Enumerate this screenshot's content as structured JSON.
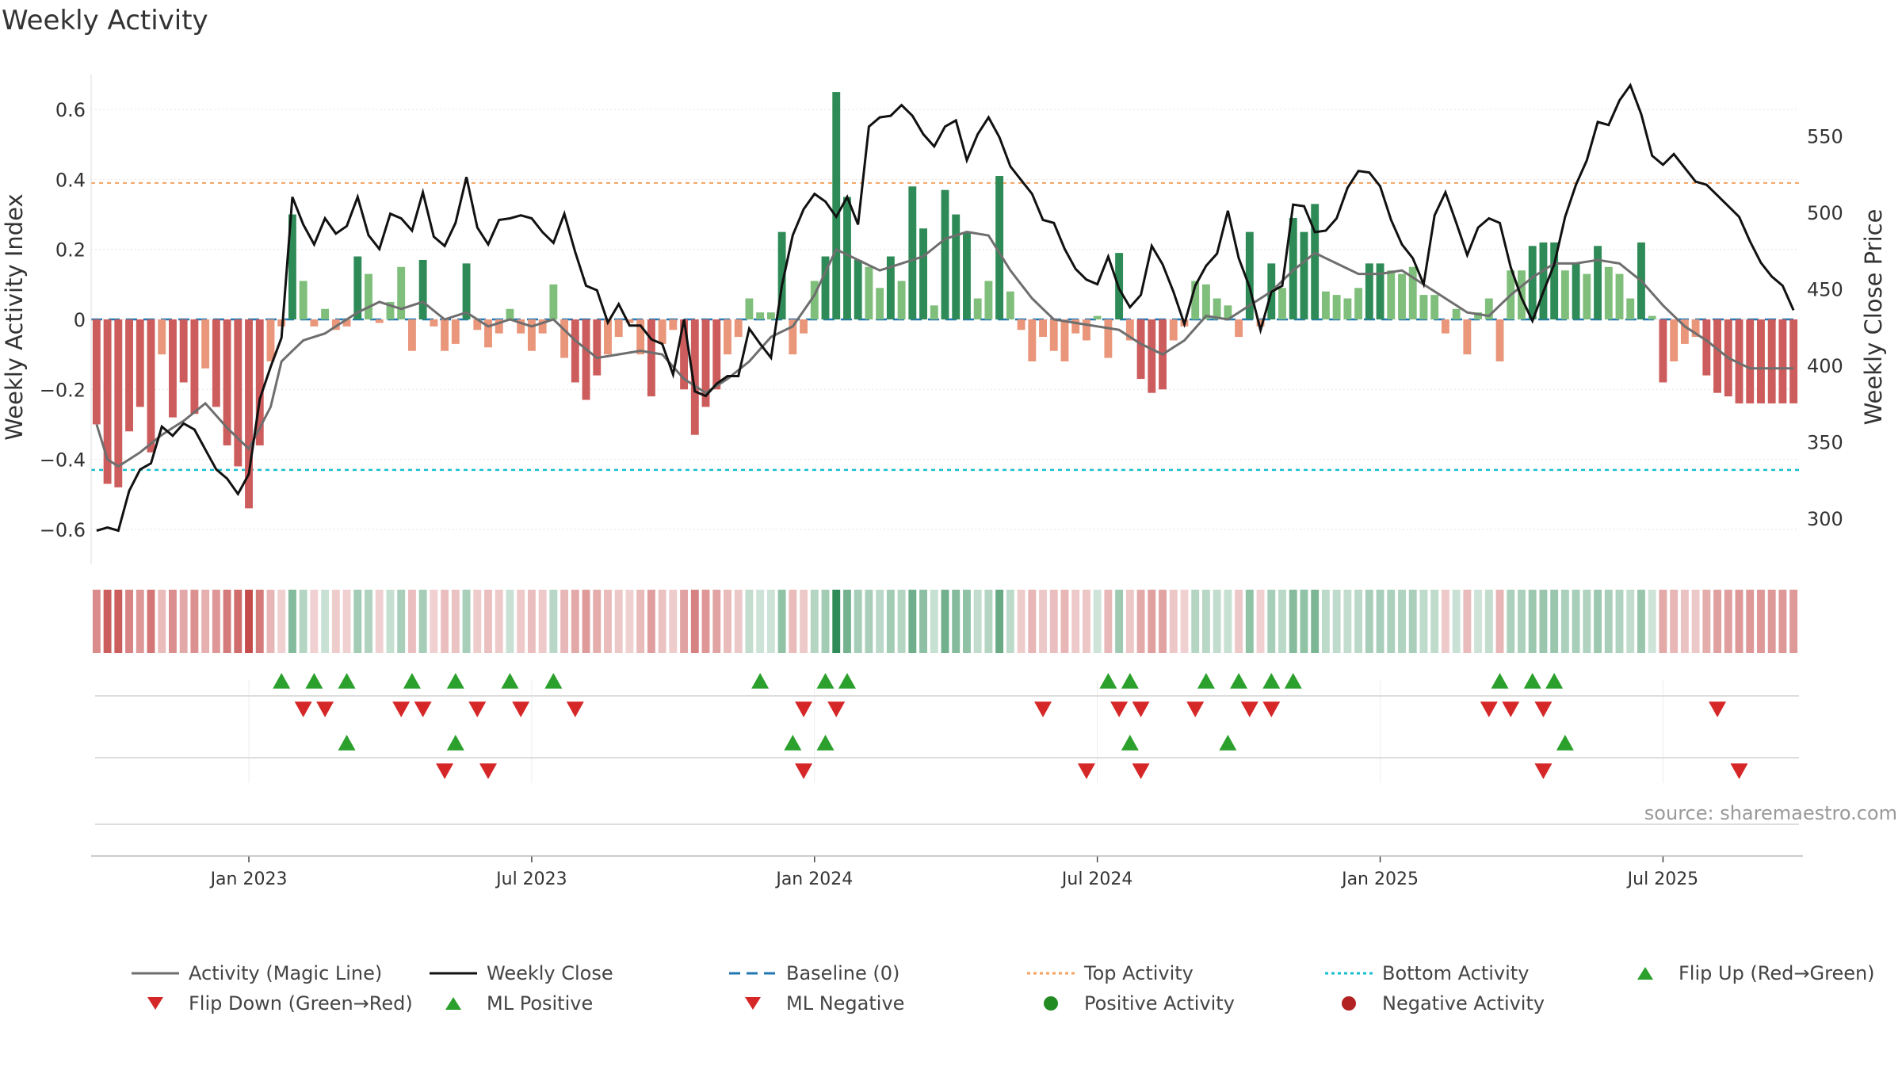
{
  "chart_data": {
    "type": "bar",
    "title": "Weekly Activity",
    "ylabel_left": "Weekly Activity Index",
    "ylabel_right": "Weekly Close Price",
    "ylim_left": [
      -0.7,
      0.7
    ],
    "ylim_right": [
      270,
      590
    ],
    "yticks_left": [
      -0.6,
      -0.4,
      -0.2,
      0,
      0.2,
      0.4,
      0.6
    ],
    "ytick_labels_left": [
      "−0.6",
      "−0.4",
      "−0.2",
      "0",
      "0.2",
      "0.4",
      "0.6"
    ],
    "yticks_right": [
      300,
      350,
      400,
      450,
      500,
      550
    ],
    "ytick_labels_right": [
      "300",
      "350",
      "400",
      "450",
      "500",
      "550"
    ],
    "xticks": [
      {
        "label": "Jan 2023",
        "week": 14
      },
      {
        "label": "Jul 2023",
        "week": 40
      },
      {
        "label": "Jan 2024",
        "week": 66
      },
      {
        "label": "Jul 2024",
        "week": 92
      },
      {
        "label": "Jan 2025",
        "week": 118
      },
      {
        "label": "Jul 2025",
        "week": 144
      }
    ],
    "top_activity": 0.39,
    "bottom_activity": -0.43,
    "weeks": 157,
    "activity_anchors": [
      [
        0,
        -0.3
      ],
      [
        1,
        -0.47
      ],
      [
        2,
        -0.48
      ],
      [
        3,
        -0.32
      ],
      [
        4,
        -0.25
      ],
      [
        5,
        -0.38
      ],
      [
        6,
        -0.1
      ],
      [
        7,
        -0.28
      ],
      [
        8,
        -0.18
      ],
      [
        9,
        -0.27
      ],
      [
        10,
        -0.14
      ],
      [
        11,
        -0.25
      ],
      [
        12,
        -0.36
      ],
      [
        13,
        -0.42
      ],
      [
        14,
        -0.54
      ],
      [
        15,
        -0.36
      ],
      [
        16,
        -0.12
      ],
      [
        17,
        -0.02
      ],
      [
        18,
        0.3
      ],
      [
        19,
        0.11
      ],
      [
        20,
        -0.02
      ],
      [
        21,
        0.03
      ],
      [
        22,
        -0.03
      ],
      [
        23,
        -0.02
      ],
      [
        24,
        0.18
      ],
      [
        25,
        0.13
      ],
      [
        26,
        -0.01
      ],
      [
        27,
        0.05
      ],
      [
        28,
        0.15
      ],
      [
        29,
        -0.09
      ],
      [
        30,
        0.17
      ],
      [
        31,
        -0.02
      ],
      [
        32,
        -0.09
      ],
      [
        33,
        -0.07
      ],
      [
        34,
        0.16
      ],
      [
        35,
        -0.03
      ],
      [
        36,
        -0.08
      ],
      [
        37,
        -0.04
      ],
      [
        38,
        0.03
      ],
      [
        39,
        -0.04
      ],
      [
        40,
        -0.09
      ],
      [
        41,
        -0.04
      ],
      [
        42,
        0.1
      ],
      [
        43,
        -0.11
      ],
      [
        44,
        -0.18
      ],
      [
        45,
        -0.23
      ],
      [
        46,
        -0.16
      ],
      [
        47,
        -0.1
      ],
      [
        48,
        -0.05
      ],
      [
        49,
        -0.01
      ],
      [
        50,
        -0.1
      ],
      [
        51,
        -0.22
      ],
      [
        52,
        -0.07
      ],
      [
        53,
        -0.03
      ],
      [
        54,
        -0.2
      ],
      [
        55,
        -0.33
      ],
      [
        56,
        -0.25
      ],
      [
        57,
        -0.2
      ],
      [
        58,
        -0.1
      ],
      [
        59,
        -0.05
      ],
      [
        60,
        0.06
      ],
      [
        61,
        0.02
      ],
      [
        62,
        0.02
      ],
      [
        63,
        0.25
      ],
      [
        64,
        -0.1
      ],
      [
        65,
        -0.04
      ],
      [
        66,
        0.11
      ],
      [
        67,
        0.18
      ],
      [
        68,
        0.65
      ],
      [
        69,
        0.35
      ],
      [
        70,
        0.17
      ],
      [
        71,
        0.15
      ],
      [
        72,
        0.09
      ],
      [
        73,
        0.18
      ],
      [
        74,
        0.11
      ],
      [
        75,
        0.38
      ],
      [
        76,
        0.26
      ],
      [
        77,
        0.04
      ],
      [
        78,
        0.37
      ],
      [
        79,
        0.3
      ],
      [
        80,
        0.25
      ],
      [
        81,
        0.06
      ],
      [
        82,
        0.11
      ],
      [
        83,
        0.41
      ],
      [
        84,
        0.08
      ],
      [
        85,
        -0.03
      ],
      [
        86,
        -0.12
      ],
      [
        87,
        -0.05
      ],
      [
        88,
        -0.09
      ],
      [
        89,
        -0.12
      ],
      [
        90,
        -0.04
      ],
      [
        91,
        -0.06
      ],
      [
        92,
        0.01
      ],
      [
        93,
        -0.11
      ],
      [
        94,
        0.19
      ],
      [
        95,
        -0.06
      ],
      [
        96,
        -0.17
      ],
      [
        97,
        -0.21
      ],
      [
        98,
        -0.2
      ],
      [
        99,
        -0.06
      ],
      [
        100,
        -0.02
      ],
      [
        101,
        0.11
      ],
      [
        102,
        0.1
      ],
      [
        103,
        0.06
      ],
      [
        104,
        0.04
      ],
      [
        105,
        -0.05
      ],
      [
        106,
        0.25
      ],
      [
        107,
        -0.02
      ],
      [
        108,
        0.16
      ],
      [
        109,
        0.09
      ],
      [
        110,
        0.29
      ],
      [
        111,
        0.25
      ],
      [
        112,
        0.33
      ],
      [
        113,
        0.08
      ],
      [
        114,
        0.07
      ],
      [
        115,
        0.06
      ],
      [
        116,
        0.09
      ],
      [
        117,
        0.16
      ],
      [
        118,
        0.16
      ],
      [
        119,
        0.14
      ],
      [
        120,
        0.13
      ],
      [
        121,
        0.15
      ],
      [
        122,
        0.07
      ],
      [
        123,
        0.07
      ],
      [
        124,
        -0.04
      ],
      [
        125,
        0.03
      ],
      [
        126,
        -0.1
      ],
      [
        127,
        0.02
      ],
      [
        128,
        0.06
      ],
      [
        129,
        -0.12
      ],
      [
        130,
        0.14
      ],
      [
        131,
        0.14
      ],
      [
        132,
        0.21
      ],
      [
        133,
        0.22
      ],
      [
        134,
        0.22
      ],
      [
        135,
        0.14
      ],
      [
        136,
        0.16
      ],
      [
        137,
        0.13
      ],
      [
        138,
        0.21
      ],
      [
        139,
        0.15
      ],
      [
        140,
        0.13
      ],
      [
        141,
        0.06
      ],
      [
        142,
        0.22
      ],
      [
        143,
        0.01
      ],
      [
        144,
        -0.18
      ],
      [
        145,
        -0.12
      ],
      [
        146,
        -0.07
      ],
      [
        147,
        -0.05
      ],
      [
        148,
        -0.16
      ],
      [
        149,
        -0.21
      ],
      [
        150,
        -0.22
      ],
      [
        151,
        -0.24
      ]
    ],
    "magic_line_anchors": [
      [
        0,
        -0.3
      ],
      [
        1,
        -0.4
      ],
      [
        2,
        -0.42
      ],
      [
        4,
        -0.38
      ],
      [
        6,
        -0.33
      ],
      [
        8,
        -0.29
      ],
      [
        10,
        -0.24
      ],
      [
        12,
        -0.31
      ],
      [
        14,
        -0.37
      ],
      [
        16,
        -0.25
      ],
      [
        17,
        -0.12
      ],
      [
        19,
        -0.06
      ],
      [
        21,
        -0.04
      ],
      [
        24,
        0.02
      ],
      [
        26,
        0.05
      ],
      [
        28,
        0.03
      ],
      [
        30,
        0.05
      ],
      [
        32,
        0.0
      ],
      [
        34,
        0.02
      ],
      [
        36,
        -0.02
      ],
      [
        38,
        0.0
      ],
      [
        40,
        -0.02
      ],
      [
        42,
        0.0
      ],
      [
        44,
        -0.06
      ],
      [
        46,
        -0.11
      ],
      [
        48,
        -0.1
      ],
      [
        50,
        -0.09
      ],
      [
        52,
        -0.1
      ],
      [
        54,
        -0.17
      ],
      [
        56,
        -0.21
      ],
      [
        58,
        -0.17
      ],
      [
        60,
        -0.12
      ],
      [
        62,
        -0.05
      ],
      [
        64,
        -0.02
      ],
      [
        66,
        0.07
      ],
      [
        68,
        0.2
      ],
      [
        70,
        0.17
      ],
      [
        72,
        0.14
      ],
      [
        74,
        0.16
      ],
      [
        76,
        0.18
      ],
      [
        78,
        0.23
      ],
      [
        80,
        0.25
      ],
      [
        82,
        0.24
      ],
      [
        84,
        0.14
      ],
      [
        86,
        0.06
      ],
      [
        88,
        0.0
      ],
      [
        90,
        -0.01
      ],
      [
        92,
        -0.02
      ],
      [
        94,
        -0.03
      ],
      [
        96,
        -0.07
      ],
      [
        98,
        -0.1
      ],
      [
        100,
        -0.06
      ],
      [
        102,
        0.01
      ],
      [
        104,
        0.0
      ],
      [
        106,
        0.04
      ],
      [
        108,
        0.08
      ],
      [
        110,
        0.14
      ],
      [
        112,
        0.19
      ],
      [
        114,
        0.16
      ],
      [
        116,
        0.13
      ],
      [
        118,
        0.13
      ],
      [
        120,
        0.14
      ],
      [
        122,
        0.1
      ],
      [
        124,
        0.06
      ],
      [
        126,
        0.02
      ],
      [
        128,
        0.01
      ],
      [
        130,
        0.07
      ],
      [
        132,
        0.12
      ],
      [
        134,
        0.16
      ],
      [
        136,
        0.16
      ],
      [
        138,
        0.17
      ],
      [
        140,
        0.16
      ],
      [
        142,
        0.11
      ],
      [
        144,
        0.04
      ],
      [
        146,
        -0.02
      ],
      [
        148,
        -0.06
      ],
      [
        150,
        -0.11
      ],
      [
        152,
        -0.14
      ]
    ],
    "close_anchors": [
      [
        0,
        292
      ],
      [
        1,
        294
      ],
      [
        2,
        292
      ],
      [
        3,
        318
      ],
      [
        4,
        332
      ],
      [
        5,
        336
      ],
      [
        6,
        360
      ],
      [
        7,
        354
      ],
      [
        8,
        362
      ],
      [
        9,
        358
      ],
      [
        10,
        345
      ],
      [
        11,
        332
      ],
      [
        12,
        326
      ],
      [
        13,
        316
      ],
      [
        14,
        329
      ],
      [
        15,
        378
      ],
      [
        16,
        399
      ],
      [
        17,
        418
      ],
      [
        18,
        510
      ],
      [
        19,
        492
      ],
      [
        20,
        479
      ],
      [
        21,
        496
      ],
      [
        22,
        486
      ],
      [
        23,
        491
      ],
      [
        24,
        510
      ],
      [
        25,
        485
      ],
      [
        26,
        476
      ],
      [
        27,
        499
      ],
      [
        28,
        496
      ],
      [
        29,
        488
      ],
      [
        30,
        513
      ],
      [
        31,
        484
      ],
      [
        32,
        478
      ],
      [
        33,
        493
      ],
      [
        34,
        523
      ],
      [
        35,
        490
      ],
      [
        36,
        479
      ],
      [
        37,
        495
      ],
      [
        38,
        496
      ],
      [
        39,
        498
      ],
      [
        40,
        496
      ],
      [
        41,
        487
      ],
      [
        42,
        480
      ],
      [
        43,
        499
      ],
      [
        44,
        474
      ],
      [
        45,
        452
      ],
      [
        46,
        449
      ],
      [
        47,
        428
      ],
      [
        48,
        440
      ],
      [
        49,
        426
      ],
      [
        50,
        426
      ],
      [
        51,
        417
      ],
      [
        52,
        414
      ],
      [
        53,
        394
      ],
      [
        54,
        430
      ],
      [
        55,
        383
      ],
      [
        56,
        380
      ],
      [
        57,
        388
      ],
      [
        58,
        393
      ],
      [
        59,
        393
      ],
      [
        60,
        424
      ],
      [
        61,
        414
      ],
      [
        62,
        405
      ],
      [
        63,
        452
      ],
      [
        64,
        485
      ],
      [
        65,
        502
      ],
      [
        66,
        512
      ],
      [
        67,
        507
      ],
      [
        68,
        497
      ],
      [
        69,
        510
      ],
      [
        70,
        492
      ],
      [
        71,
        556
      ],
      [
        72,
        562
      ],
      [
        73,
        563
      ],
      [
        74,
        570
      ],
      [
        75,
        563
      ],
      [
        76,
        551
      ],
      [
        77,
        543
      ],
      [
        78,
        556
      ],
      [
        79,
        560
      ],
      [
        80,
        534
      ],
      [
        81,
        551
      ],
      [
        82,
        562
      ],
      [
        83,
        549
      ],
      [
        84,
        530
      ],
      [
        85,
        521
      ],
      [
        86,
        512
      ],
      [
        87,
        495
      ],
      [
        88,
        493
      ],
      [
        89,
        476
      ],
      [
        90,
        463
      ],
      [
        91,
        456
      ],
      [
        92,
        453
      ],
      [
        93,
        471
      ],
      [
        94,
        450
      ],
      [
        95,
        438
      ],
      [
        96,
        446
      ],
      [
        97,
        478
      ],
      [
        98,
        466
      ],
      [
        99,
        448
      ],
      [
        100,
        427
      ],
      [
        101,
        452
      ],
      [
        102,
        465
      ],
      [
        103,
        473
      ],
      [
        104,
        501
      ],
      [
        105,
        470
      ],
      [
        106,
        451
      ],
      [
        107,
        423
      ],
      [
        108,
        448
      ],
      [
        109,
        452
      ],
      [
        110,
        505
      ],
      [
        111,
        504
      ],
      [
        112,
        487
      ],
      [
        113,
        488
      ],
      [
        114,
        496
      ],
      [
        115,
        516
      ],
      [
        116,
        527
      ],
      [
        117,
        526
      ],
      [
        118,
        517
      ],
      [
        119,
        495
      ],
      [
        120,
        479
      ],
      [
        121,
        470
      ],
      [
        122,
        453
      ],
      [
        123,
        498
      ],
      [
        124,
        513
      ],
      [
        125,
        493
      ],
      [
        126,
        472
      ],
      [
        127,
        490
      ],
      [
        128,
        496
      ],
      [
        129,
        493
      ],
      [
        130,
        464
      ],
      [
        131,
        444
      ],
      [
        132,
        429
      ],
      [
        133,
        448
      ],
      [
        134,
        466
      ],
      [
        135,
        497
      ],
      [
        136,
        518
      ],
      [
        137,
        534
      ],
      [
        138,
        559
      ],
      [
        139,
        557
      ],
      [
        140,
        573
      ],
      [
        141,
        583
      ],
      [
        142,
        564
      ],
      [
        143,
        537
      ],
      [
        144,
        531
      ],
      [
        145,
        538
      ],
      [
        146,
        529
      ],
      [
        147,
        520
      ],
      [
        148,
        518
      ],
      [
        149,
        511
      ],
      [
        150,
        504
      ],
      [
        151,
        497
      ],
      [
        152,
        481
      ],
      [
        153,
        467
      ],
      [
        154,
        458
      ],
      [
        155,
        452
      ],
      [
        156,
        436
      ]
    ],
    "heat_strip": "sign of activity by week (green = positive, red = negative)",
    "flip_up_weeks": [
      17,
      20,
      23,
      29,
      33,
      38,
      42,
      61,
      67,
      69,
      93,
      95,
      102,
      105,
      108,
      110,
      129,
      132,
      134
    ],
    "flip_down_weeks": [
      19,
      21,
      28,
      30,
      35,
      39,
      44,
      65,
      68,
      87,
      94,
      96,
      101,
      106,
      108,
      128,
      130,
      133,
      149
    ],
    "ml_positive_weeks": [
      23,
      33,
      64,
      67,
      95,
      104,
      135
    ],
    "ml_negative_weeks": [
      32,
      36,
      65,
      91,
      96,
      133,
      151
    ],
    "legend": [
      {
        "label": "Activity (Magic Line)",
        "key": "magic"
      },
      {
        "label": "Weekly Close",
        "key": "close"
      },
      {
        "label": "Baseline (0)",
        "key": "baseline"
      },
      {
        "label": "Top Activity",
        "key": "top"
      },
      {
        "label": "Bottom Activity",
        "key": "bottom"
      },
      {
        "label": "Flip Up (Red→Green)",
        "key": "flipup"
      },
      {
        "label": "Flip Down (Green→Red)",
        "key": "flipdown"
      },
      {
        "label": "ML Positive",
        "key": "mlpos"
      },
      {
        "label": "ML Negative",
        "key": "mlneg"
      },
      {
        "label": "Positive Activity",
        "key": "posdot"
      },
      {
        "label": "Negative Activity",
        "key": "negdot"
      }
    ],
    "source": "source: sharemaestro.com"
  },
  "colors": {
    "pos_dark": "#2e8b57",
    "pos_light": "#7fbf7b",
    "neg_dark": "#cd5c5c",
    "neg_light": "#e9967a",
    "close": "#111111",
    "magic": "#6e6e6e",
    "baseline": "#1f77b4",
    "top": "#f4a261",
    "bottom": "#17becf",
    "up": "#2ca02c",
    "down": "#d62728",
    "neg_dot": "#b22222",
    "pos_dot": "#228b22",
    "grid": "#e6e6e6"
  }
}
